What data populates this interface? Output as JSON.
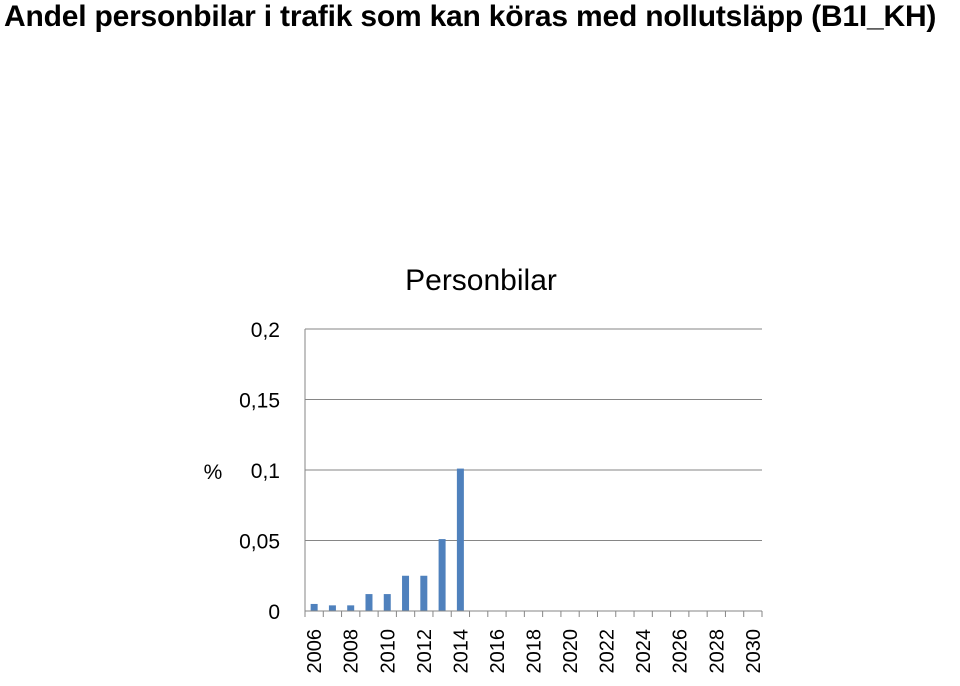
{
  "page": {
    "title": "Andel personbilar i trafik som kan köras med nollutsläpp (B1I_KH)"
  },
  "chart_data": {
    "type": "bar",
    "title": "Personbilar",
    "xlabel": "",
    "ylabel": "%",
    "ylim": [
      0,
      0.2
    ],
    "yticks": [
      "0",
      "0,05",
      "0,1",
      "0,15",
      "0,2"
    ],
    "grid": true,
    "legend": "none",
    "bar_color": "#4f81bd",
    "categories": [
      "2006",
      "2007",
      "2008",
      "2009",
      "2010",
      "2011",
      "2012",
      "2013",
      "2014",
      "2015",
      "2016",
      "2017",
      "2018",
      "2019",
      "2020",
      "2021",
      "2022",
      "2023",
      "2024",
      "2025",
      "2026",
      "2027",
      "2028",
      "2029",
      "2030"
    ],
    "x_tick_labels": [
      "2006",
      "2008",
      "2010",
      "2012",
      "2014",
      "2016",
      "2018",
      "2020",
      "2022",
      "2024",
      "2026",
      "2028",
      "2030"
    ],
    "values": [
      0.005,
      0.004,
      0.004,
      0.012,
      0.012,
      0.025,
      0.025,
      0.051,
      0.101,
      null,
      null,
      null,
      null,
      null,
      null,
      null,
      null,
      null,
      null,
      null,
      null,
      null,
      null,
      null,
      null
    ]
  }
}
